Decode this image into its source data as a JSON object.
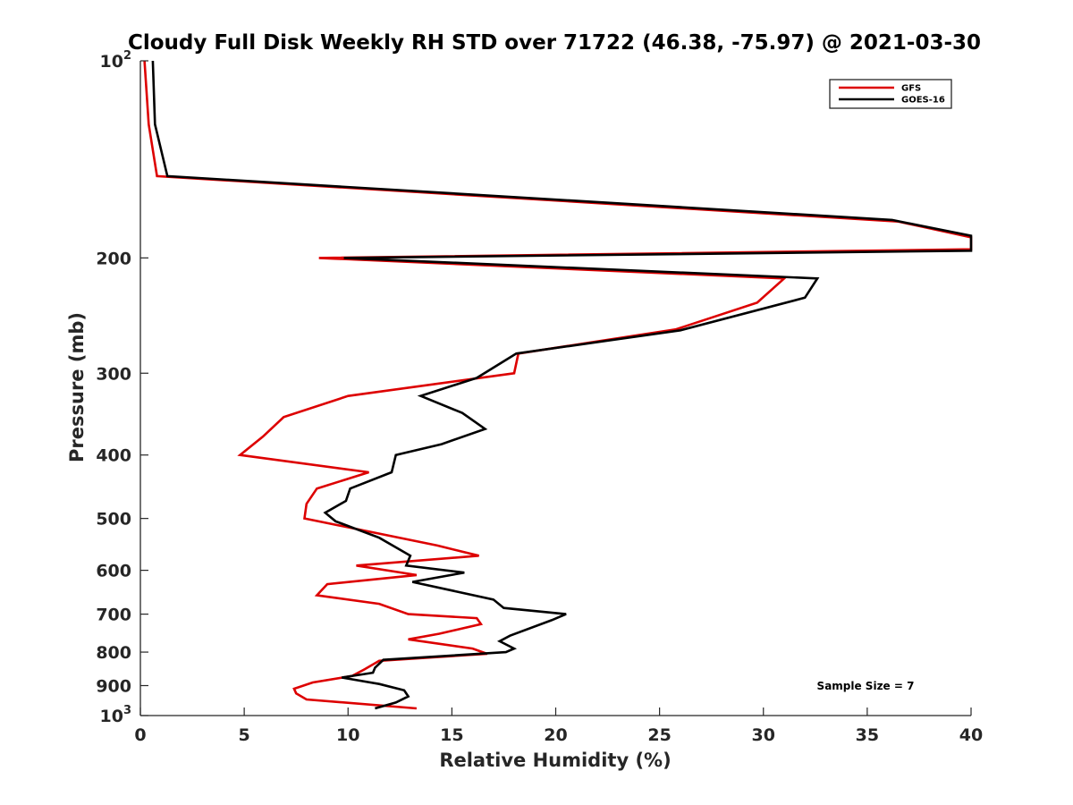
{
  "chart_data": {
    "type": "line",
    "title": "Cloudy Full Disk Weekly RH STD over 71722 (46.38, -75.97) @ 2021-03-30",
    "xlabel": "Relative Humidity (%)",
    "ylabel": "Pressure (mb)",
    "xlim": [
      0,
      40
    ],
    "ylim": [
      100,
      1000
    ],
    "yscale": "log",
    "y_reversed": true,
    "xticks": [
      0,
      5,
      10,
      15,
      20,
      25,
      30,
      35,
      40
    ],
    "yticks": [
      {
        "value": 100,
        "base": "10",
        "exp": "2"
      },
      {
        "value": 200,
        "label": "200"
      },
      {
        "value": 300,
        "label": "300"
      },
      {
        "value": 400,
        "label": "400"
      },
      {
        "value": 500,
        "label": "500"
      },
      {
        "value": 600,
        "label": "600"
      },
      {
        "value": 700,
        "label": "700"
      },
      {
        "value": 800,
        "label": "800"
      },
      {
        "value": 900,
        "label": "900"
      },
      {
        "value": 1000,
        "base": "10",
        "exp": "3"
      }
    ],
    "legend_position": "top-right",
    "annotation": "Sample Size = 7",
    "series": [
      {
        "name": "GFS",
        "color": "#dd0000",
        "points": [
          [
            0.2,
            100
          ],
          [
            0.4,
            125
          ],
          [
            0.8,
            150
          ],
          [
            36.5,
            176
          ],
          [
            40,
            186
          ],
          [
            40,
            194
          ],
          [
            8.6,
            200
          ],
          [
            31.0,
            215
          ],
          [
            29.7,
            234
          ],
          [
            25.8,
            257
          ],
          [
            18.2,
            280
          ],
          [
            18.0,
            300
          ],
          [
            10.0,
            325
          ],
          [
            6.9,
            350
          ],
          [
            5.9,
            375
          ],
          [
            4.8,
            400
          ],
          [
            11.0,
            425
          ],
          [
            8.5,
            450
          ],
          [
            8.0,
            475
          ],
          [
            7.9,
            500
          ],
          [
            14.3,
            550
          ],
          [
            16.3,
            570
          ],
          [
            10.4,
            590
          ],
          [
            13.3,
            610
          ],
          [
            9.0,
            630
          ],
          [
            8.5,
            655
          ],
          [
            11.5,
            675
          ],
          [
            12.9,
            700
          ],
          [
            16.2,
            710
          ],
          [
            16.4,
            725
          ],
          [
            14.4,
            750
          ],
          [
            12.9,
            765
          ],
          [
            16.0,
            790
          ],
          [
            16.7,
            805
          ],
          [
            11.5,
            825
          ],
          [
            10.8,
            850
          ],
          [
            10.2,
            870
          ],
          [
            8.3,
            890
          ],
          [
            7.4,
            910
          ],
          [
            7.5,
            925
          ],
          [
            8.0,
            945
          ],
          [
            13.3,
            975
          ]
        ]
      },
      {
        "name": "GOES-16",
        "color": "#000000",
        "points": [
          [
            0.6,
            100
          ],
          [
            0.7,
            125
          ],
          [
            1.3,
            150
          ],
          [
            36.2,
            175
          ],
          [
            40,
            185
          ],
          [
            40,
            195
          ],
          [
            9.8,
            200
          ],
          [
            32.6,
            215
          ],
          [
            32.0,
            230
          ],
          [
            26.0,
            258
          ],
          [
            18.1,
            280
          ],
          [
            16.2,
            305
          ],
          [
            13.5,
            325
          ],
          [
            15.5,
            345
          ],
          [
            16.6,
            365
          ],
          [
            14.5,
            385
          ],
          [
            12.3,
            400
          ],
          [
            12.1,
            425
          ],
          [
            10.1,
            450
          ],
          [
            9.9,
            470
          ],
          [
            8.9,
            490
          ],
          [
            9.4,
            505
          ],
          [
            11.5,
            535
          ],
          [
            13.0,
            570
          ],
          [
            12.8,
            590
          ],
          [
            15.6,
            605
          ],
          [
            13.1,
            625
          ],
          [
            17.0,
            665
          ],
          [
            17.5,
            685
          ],
          [
            20.5,
            700
          ],
          [
            19.8,
            715
          ],
          [
            17.8,
            755
          ],
          [
            17.3,
            770
          ],
          [
            18.0,
            790
          ],
          [
            17.6,
            800
          ],
          [
            11.7,
            822
          ],
          [
            11.3,
            845
          ],
          [
            11.2,
            860
          ],
          [
            9.7,
            875
          ],
          [
            11.5,
            895
          ],
          [
            12.7,
            915
          ],
          [
            12.9,
            935
          ],
          [
            12.3,
            955
          ],
          [
            11.3,
            975
          ]
        ]
      }
    ]
  }
}
